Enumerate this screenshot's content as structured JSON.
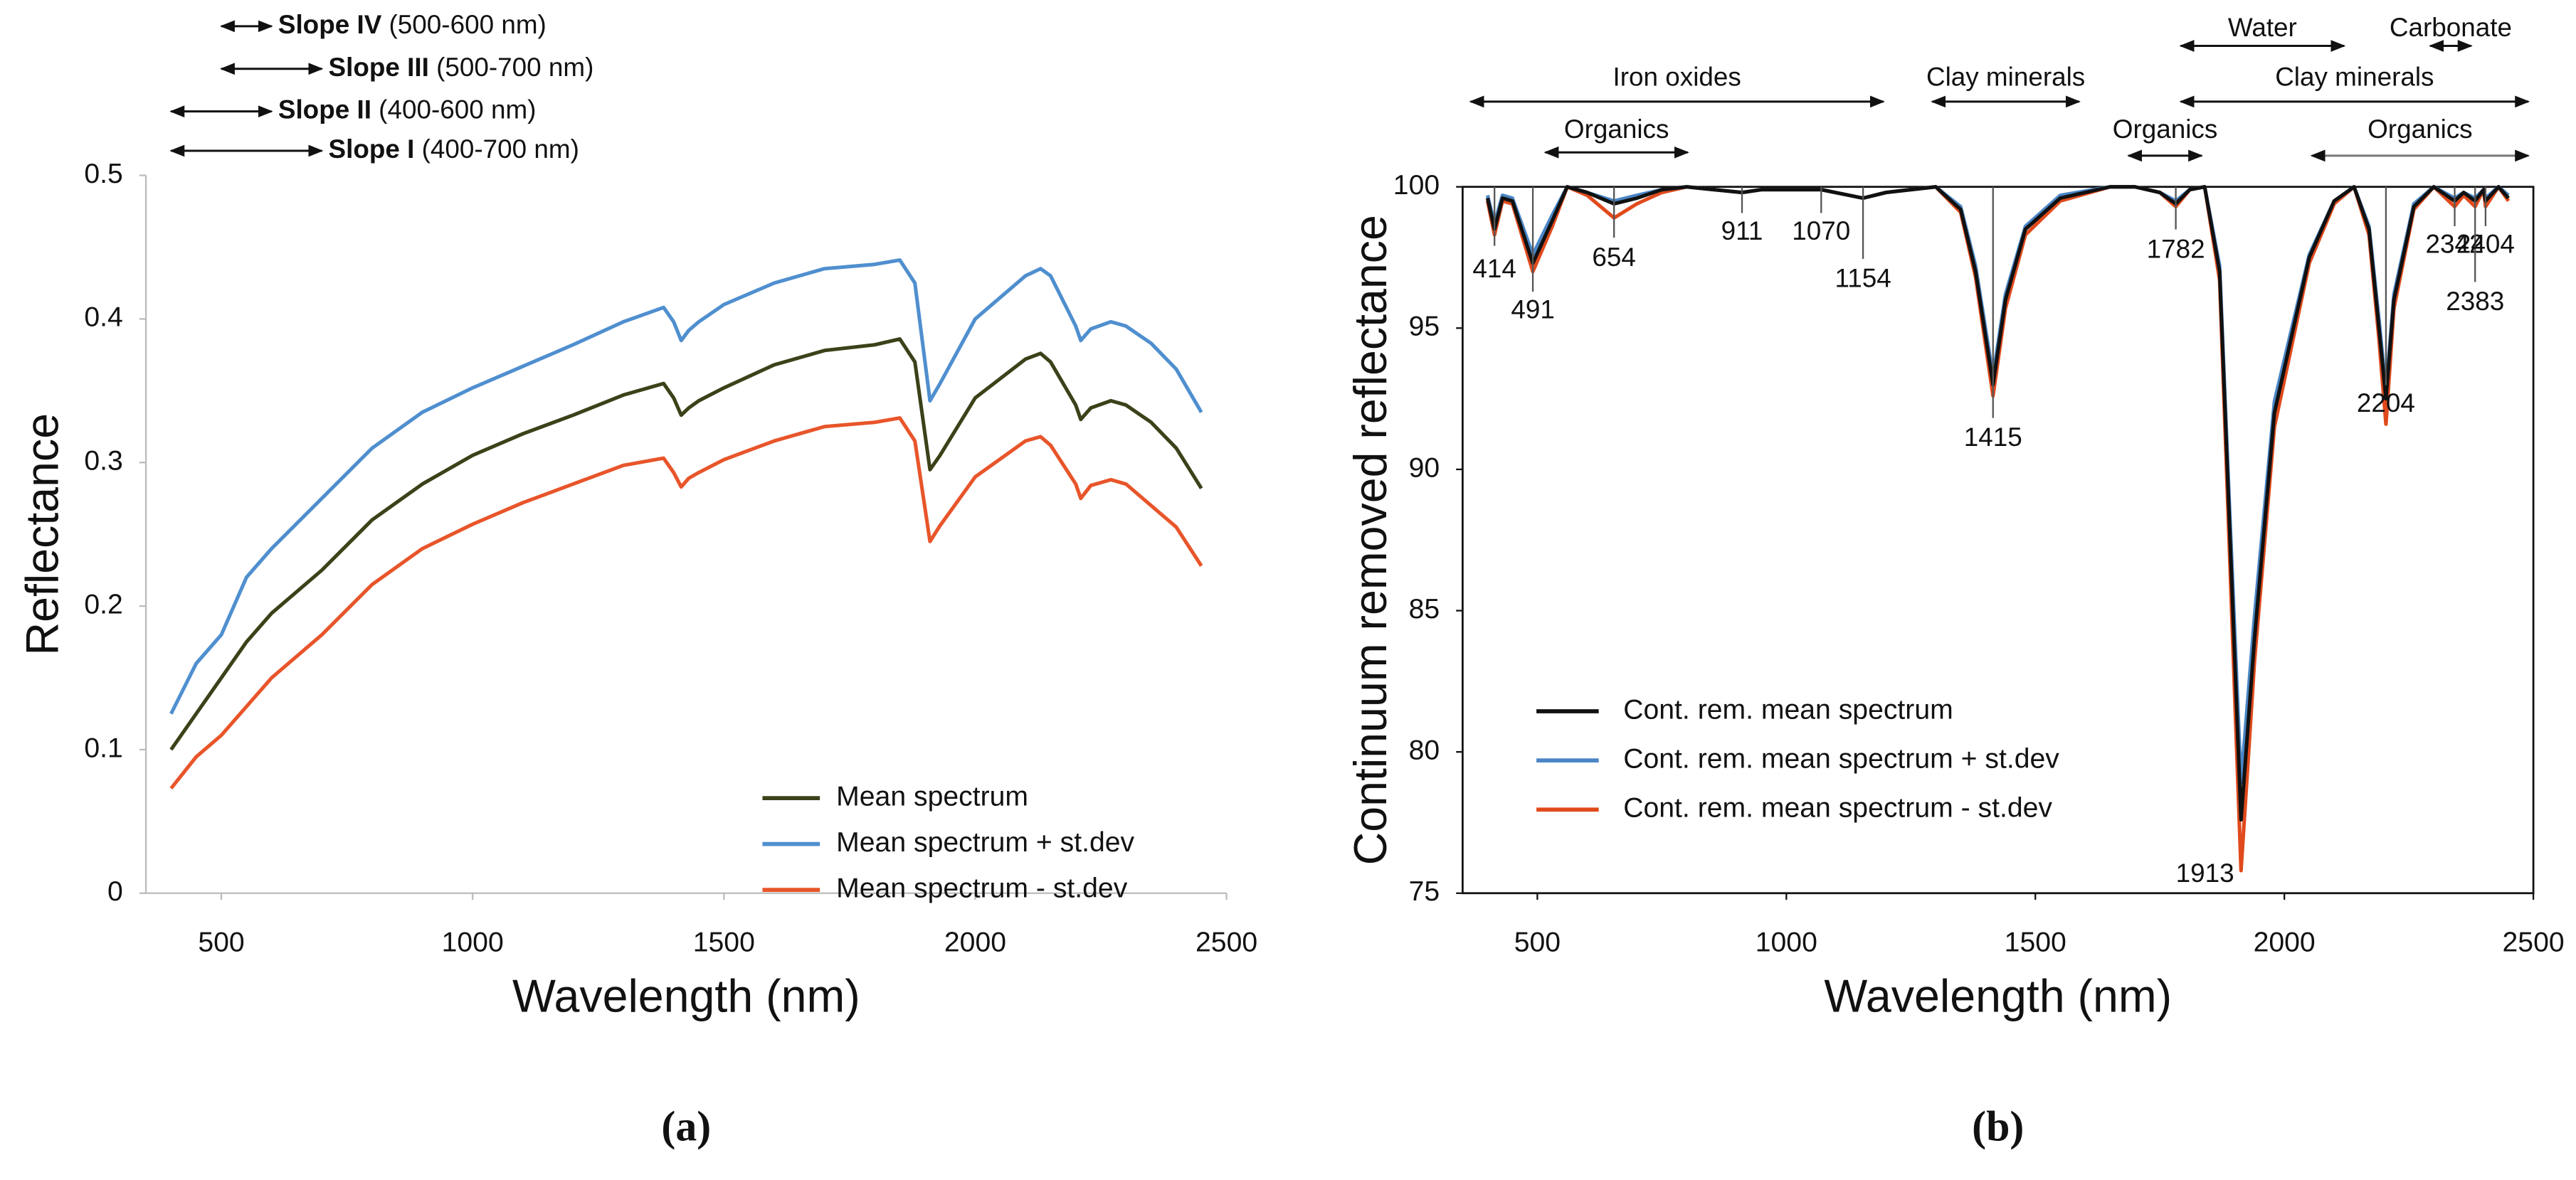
{
  "chart_data": [
    {
      "type": "line",
      "panel_label": "(a)",
      "x_label": "Wavelength (nm)",
      "y_label": "Reflectance",
      "xlim": [
        350,
        2500
      ],
      "xticks": [
        500,
        1000,
        1500,
        2000,
        2500
      ],
      "ylim": [
        0,
        0.5
      ],
      "yticks": [
        0,
        0.1,
        0.2,
        0.3,
        0.4,
        0.5
      ],
      "grid": false,
      "legend": "lower right",
      "x": [
        400,
        450,
        500,
        550,
        600,
        700,
        800,
        900,
        1000,
        1100,
        1200,
        1300,
        1380,
        1400,
        1415,
        1430,
        1450,
        1500,
        1600,
        1700,
        1800,
        1850,
        1880,
        1910,
        1930,
        2000,
        2100,
        2130,
        2150,
        2200,
        2210,
        2230,
        2270,
        2300,
        2350,
        2400,
        2450
      ],
      "series": [
        {
          "name": "Mean spectrum",
          "color": "#3c4119",
          "values": [
            0.1,
            0.125,
            0.15,
            0.175,
            0.195,
            0.225,
            0.26,
            0.285,
            0.305,
            0.32,
            0.333,
            0.347,
            0.355,
            0.345,
            0.333,
            0.338,
            0.343,
            0.352,
            0.368,
            0.378,
            0.382,
            0.386,
            0.37,
            0.295,
            0.305,
            0.345,
            0.372,
            0.376,
            0.37,
            0.34,
            0.33,
            0.338,
            0.343,
            0.34,
            0.328,
            0.31,
            0.282
          ]
        },
        {
          "name": "Mean spectrum + st.dev",
          "color": "#4f8fcf",
          "values": [
            0.125,
            0.16,
            0.18,
            0.22,
            0.24,
            0.275,
            0.31,
            0.335,
            0.352,
            0.367,
            0.382,
            0.398,
            0.408,
            0.398,
            0.385,
            0.392,
            0.398,
            0.41,
            0.425,
            0.435,
            0.438,
            0.441,
            0.425,
            0.343,
            0.355,
            0.4,
            0.43,
            0.435,
            0.43,
            0.395,
            0.385,
            0.393,
            0.398,
            0.395,
            0.383,
            0.365,
            0.335
          ]
        },
        {
          "name": "Mean spectrum - st.dev",
          "color": "#e8552a",
          "values": [
            0.073,
            0.095,
            0.11,
            0.13,
            0.15,
            0.18,
            0.215,
            0.24,
            0.257,
            0.272,
            0.285,
            0.298,
            0.303,
            0.293,
            0.283,
            0.289,
            0.293,
            0.302,
            0.315,
            0.325,
            0.328,
            0.331,
            0.315,
            0.245,
            0.256,
            0.29,
            0.315,
            0.318,
            0.312,
            0.285,
            0.275,
            0.284,
            0.288,
            0.285,
            0.27,
            0.255,
            0.228
          ]
        }
      ],
      "ranges": [
        {
          "name": "Slope IV",
          "detail": "(500-600 nm)",
          "range": [
            500,
            600
          ]
        },
        {
          "name": "Slope III",
          "detail": "(500-700 nm)",
          "range": [
            500,
            700
          ]
        },
        {
          "name": "Slope II",
          "detail": "(400-600 nm)",
          "range": [
            400,
            600
          ]
        },
        {
          "name": "Slope I",
          "detail": "(400-700 nm)",
          "range": [
            400,
            700
          ]
        }
      ]
    },
    {
      "type": "line",
      "panel_label": "(b)",
      "x_label": "Wavelength (nm)",
      "y_label": "Continuum removed reflectance",
      "xlim": [
        350,
        2500
      ],
      "xticks": [
        500,
        1000,
        1500,
        2000,
        2500
      ],
      "ylim": [
        75,
        100
      ],
      "yticks": [
        75,
        80,
        85,
        90,
        95,
        100
      ],
      "grid": false,
      "legend": "lower left",
      "x": [
        400,
        414,
        430,
        450,
        491,
        530,
        560,
        600,
        654,
        700,
        750,
        800,
        911,
        950,
        1000,
        1070,
        1154,
        1200,
        1300,
        1350,
        1380,
        1415,
        1440,
        1480,
        1550,
        1650,
        1700,
        1750,
        1782,
        1810,
        1840,
        1870,
        1890,
        1913,
        1940,
        1980,
        2050,
        2100,
        2140,
        2170,
        2190,
        2204,
        2220,
        2260,
        2300,
        2342,
        2360,
        2383,
        2400,
        2404,
        2430,
        2450
      ],
      "series": [
        {
          "name": "Cont. rem. mean spectrum",
          "color": "#111111",
          "values": [
            99.6,
            98.5,
            99.6,
            99.5,
            97.3,
            98.8,
            100,
            99.8,
            99.4,
            99.6,
            99.9,
            100,
            99.8,
            99.9,
            99.9,
            99.9,
            99.6,
            99.8,
            100,
            99.2,
            97,
            93,
            96,
            98.5,
            99.6,
            100,
            100,
            99.8,
            99.4,
            99.9,
            100,
            97,
            88,
            77.6,
            84,
            92,
            97.5,
            99.5,
            100,
            98.5,
            95,
            92.5,
            96,
            99.3,
            100,
            99.5,
            99.8,
            99.5,
            99.9,
            99.5,
            100,
            99.6
          ]
        },
        {
          "name": "Cont. rem. mean spectrum + st.dev",
          "color": "#4a86c6",
          "values": [
            99.7,
            98.7,
            99.7,
            99.6,
            97.6,
            99,
            100,
            99.8,
            99.5,
            99.7,
            99.9,
            100,
            99.8,
            99.9,
            99.9,
            99.9,
            99.6,
            99.8,
            100,
            99.3,
            97.2,
            93.3,
            96.2,
            98.6,
            99.7,
            100,
            100,
            99.8,
            99.5,
            99.9,
            100,
            97.2,
            88.6,
            78.9,
            84.8,
            92.4,
            97.6,
            99.5,
            100,
            98.6,
            95.3,
            92.8,
            96.2,
            99.4,
            100,
            99.6,
            99.8,
            99.6,
            99.9,
            99.6,
            100,
            99.7
          ]
        },
        {
          "name": "Cont. rem. mean spectrum - st.dev",
          "color": "#e04a1c",
          "values": [
            99.5,
            98.3,
            99.5,
            99.4,
            97,
            98.6,
            100,
            99.7,
            98.9,
            99.4,
            99.8,
            100,
            99.8,
            99.9,
            99.9,
            99.9,
            99.6,
            99.8,
            100,
            99.1,
            96.8,
            92.6,
            95.7,
            98.3,
            99.5,
            100,
            100,
            99.8,
            99.3,
            99.9,
            100,
            96.7,
            87,
            75.8,
            83.2,
            91.5,
            97.3,
            99.4,
            100,
            98.3,
            94.6,
            91.6,
            95.7,
            99.2,
            100,
            99.3,
            99.7,
            99.3,
            99.9,
            99.3,
            100,
            99.5
          ]
        }
      ],
      "ranges": [
        {
          "name": "Iron oxides",
          "range": [
            366,
            1195
          ]
        },
        {
          "name": "Organics",
          "range": [
            516,
            802
          ]
        },
        {
          "name": "Clay minerals",
          "range": [
            1293,
            1588
          ]
        },
        {
          "name": "Organics",
          "range": [
            1687,
            1834
          ]
        },
        {
          "name": "Water",
          "range": [
            1792,
            2120
          ]
        },
        {
          "name": "Clay minerals",
          "range": [
            1792,
            2490
          ]
        },
        {
          "name": "Carbonate",
          "range": [
            2293,
            2375
          ]
        },
        {
          "name": "Organics",
          "range": [
            2055,
            2490
          ]
        }
      ],
      "band_labels": [
        414,
        491,
        654,
        911,
        1070,
        1154,
        1415,
        1782,
        1913,
        2204,
        2342,
        2383,
        2404
      ]
    }
  ]
}
